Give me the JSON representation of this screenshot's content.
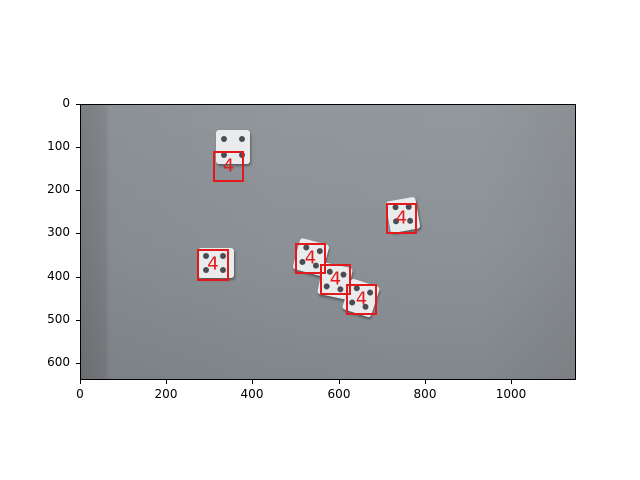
{
  "figure": {
    "x_ticks": [
      "0",
      "200",
      "400",
      "600",
      "800",
      "1000"
    ],
    "y_ticks": [
      "0",
      "100",
      "200",
      "300",
      "400",
      "500",
      "600"
    ]
  },
  "detections": [
    {
      "label": "4"
    },
    {
      "label": "4"
    },
    {
      "label": "4"
    },
    {
      "label": "4"
    },
    {
      "label": "4"
    },
    {
      "label": "4"
    }
  ],
  "colors": {
    "box": "#e31a1c",
    "background_surface": "#8b9196",
    "die": "#e9ebec"
  }
}
